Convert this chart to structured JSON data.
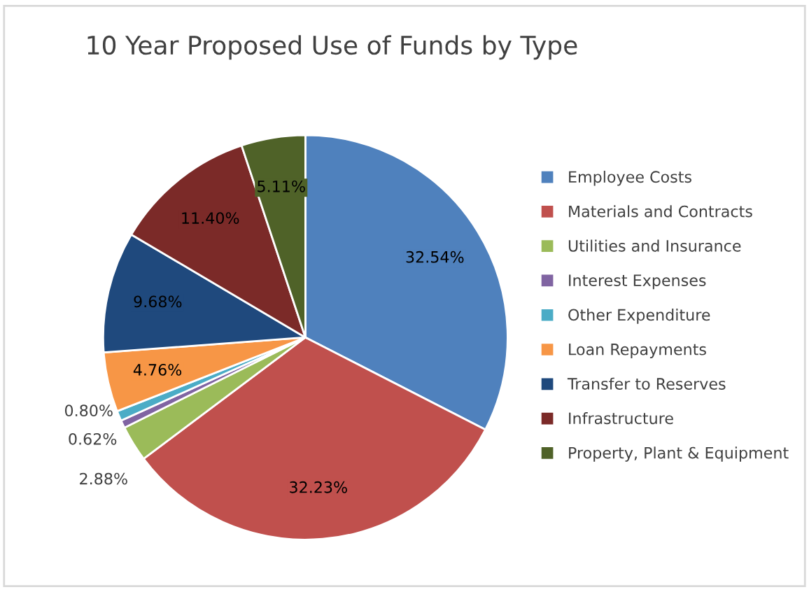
{
  "chart_data": {
    "type": "pie",
    "title": "10 Year Proposed Use of Funds by Type",
    "categories": [
      "Employee Costs",
      "Materials and Contracts",
      "Utilities and Insurance",
      "Interest Expenses",
      "Other Expenditure",
      "Loan Repayments",
      "Transfer to Reserves",
      "Infrastructure",
      "Property, Plant & Equipment"
    ],
    "values": [
      32.54,
      32.23,
      2.88,
      0.62,
      0.8,
      4.76,
      9.68,
      11.4,
      5.11
    ],
    "value_labels": [
      "32.54%",
      "32.23%",
      "2.88%",
      "0.62%",
      "0.80%",
      "4.76%",
      "9.68%",
      "11.40%",
      "5.11%"
    ],
    "colors": [
      "#4f81bd",
      "#c0504d",
      "#9bbb59",
      "#8064a2",
      "#4bacc6",
      "#f79646",
      "#1f497d",
      "#7b2a28",
      "#4f6228"
    ],
    "legend": "right"
  }
}
